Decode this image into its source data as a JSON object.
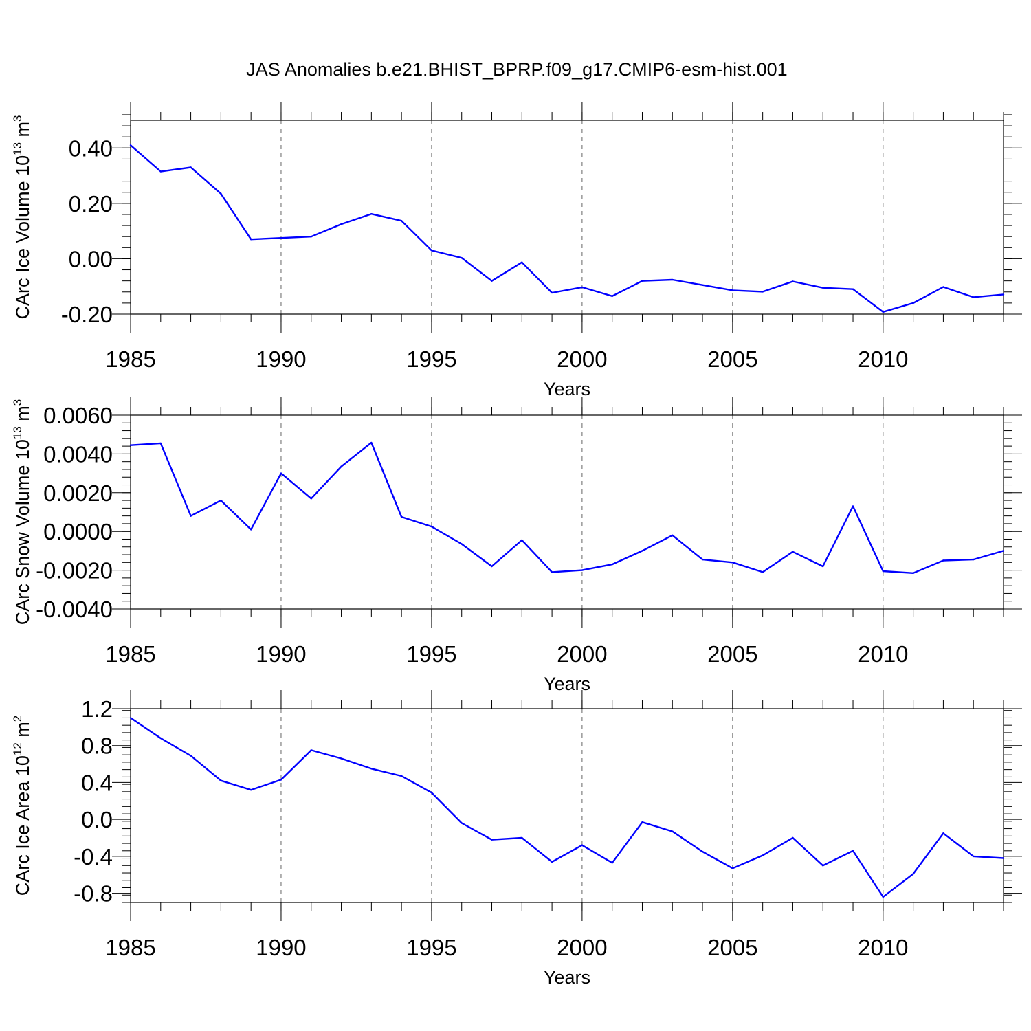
{
  "title": "JAS Anomalies b.e21.BHIST_BPRP.f09_g17.CMIP6-esm-hist.001",
  "colors": {
    "line": "#0000ff",
    "axes": "#000000",
    "grid": "#666666"
  },
  "chart_data": [
    {
      "type": "line",
      "ylabel_main": "CArc Ice Volume 10",
      "ylabel_exp": "13",
      "ylabel_unit": " m",
      "ylabel_unit_exp": "3",
      "xlabel": "Years",
      "xlim": [
        1985,
        2014
      ],
      "ylim": [
        -0.2,
        0.5
      ],
      "yticks": [
        -0.2,
        0.0,
        0.2,
        0.4
      ],
      "ytick_labels": [
        "-0.20",
        "0.00",
        "0.20",
        "0.40"
      ],
      "yminor_step": 0.04,
      "xticks": [
        1985,
        1990,
        1995,
        2000,
        2005,
        2010
      ],
      "xtick_labels": [
        "1985",
        "1990",
        "1995",
        "2000",
        "2005",
        "2010"
      ],
      "grid_x": [
        1990,
        1995,
        2000,
        2005,
        2010
      ],
      "x": [
        1985,
        1986,
        1987,
        1988,
        1989,
        1990,
        1991,
        1992,
        1993,
        1994,
        1995,
        1996,
        1997,
        1998,
        1999,
        2000,
        2001,
        2002,
        2003,
        2004,
        2005,
        2006,
        2007,
        2008,
        2009,
        2010,
        2011,
        2012,
        2013,
        2014
      ],
      "values": [
        0.41,
        0.315,
        0.33,
        0.235,
        0.07,
        0.075,
        0.08,
        0.125,
        0.162,
        0.137,
        0.03,
        0.003,
        -0.08,
        -0.013,
        -0.123,
        -0.103,
        -0.135,
        -0.08,
        -0.076,
        -0.095,
        -0.114,
        -0.119,
        -0.082,
        -0.105,
        -0.11,
        -0.192,
        -0.16,
        -0.102,
        -0.139,
        -0.129
      ]
    },
    {
      "type": "line",
      "ylabel_main": "CArc Snow Volume 10",
      "ylabel_exp": "13",
      "ylabel_unit": " m",
      "ylabel_unit_exp": "3",
      "xlabel": "Years",
      "xlim": [
        1985,
        2014
      ],
      "ylim": [
        -0.004,
        0.006
      ],
      "yticks": [
        -0.004,
        -0.002,
        0.0,
        0.002,
        0.004,
        0.006
      ],
      "ytick_labels": [
        "-0.0040",
        "-0.0020",
        "0.0000",
        "0.0020",
        "0.0040",
        "0.0060"
      ],
      "yminor_step": 0.0004,
      "xticks": [
        1985,
        1990,
        1995,
        2000,
        2005,
        2010
      ],
      "xtick_labels": [
        "1985",
        "1990",
        "1995",
        "2000",
        "2005",
        "2010"
      ],
      "grid_x": [
        1990,
        1995,
        2000,
        2005,
        2010
      ],
      "x": [
        1985,
        1986,
        1987,
        1988,
        1989,
        1990,
        1991,
        1992,
        1993,
        1994,
        1995,
        1996,
        1997,
        1998,
        1999,
        2000,
        2001,
        2002,
        2003,
        2004,
        2005,
        2006,
        2007,
        2008,
        2009,
        2010,
        2011,
        2012,
        2013,
        2014
      ],
      "values": [
        0.00445,
        0.00455,
        0.0008,
        0.0016,
        0.0001,
        0.003,
        0.0017,
        0.00335,
        0.00458,
        0.00075,
        0.00025,
        -0.00065,
        -0.0018,
        -0.00045,
        -0.0021,
        -0.002,
        -0.0017,
        -0.001,
        -0.0002,
        -0.00145,
        -0.0016,
        -0.0021,
        -0.00105,
        -0.0018,
        0.0013,
        -0.00205,
        -0.00215,
        -0.0015,
        -0.00145,
        -0.001
      ]
    },
    {
      "type": "line",
      "ylabel_main": "CArc Ice Area 10",
      "ylabel_exp": "12",
      "ylabel_unit": " m",
      "ylabel_unit_exp": "2",
      "xlabel": "Years",
      "xlim": [
        1985,
        2014
      ],
      "ylim": [
        -0.9,
        1.2
      ],
      "yticks": [
        -0.8,
        -0.4,
        0.0,
        0.4,
        0.8,
        1.2
      ],
      "ytick_labels": [
        "-0.8",
        "-0.4",
        "0.0",
        "0.4",
        "0.8",
        "1.2"
      ],
      "yminor_step": 0.08,
      "xticks": [
        1985,
        1990,
        1995,
        2000,
        2005,
        2010
      ],
      "xtick_labels": [
        "1985",
        "1990",
        "1995",
        "2000",
        "2005",
        "2010"
      ],
      "grid_x": [
        1990,
        1995,
        2000,
        2005,
        2010
      ],
      "x": [
        1985,
        1986,
        1987,
        1988,
        1989,
        1990,
        1991,
        1992,
        1993,
        1994,
        1995,
        1996,
        1997,
        1998,
        1999,
        2000,
        2001,
        2002,
        2003,
        2004,
        2005,
        2006,
        2007,
        2008,
        2009,
        2010,
        2011,
        2012,
        2013,
        2014
      ],
      "values": [
        1.1,
        0.88,
        0.69,
        0.42,
        0.32,
        0.43,
        0.75,
        0.66,
        0.55,
        0.47,
        0.29,
        -0.04,
        -0.22,
        -0.2,
        -0.46,
        -0.28,
        -0.47,
        -0.03,
        -0.13,
        -0.35,
        -0.53,
        -0.39,
        -0.2,
        -0.5,
        -0.34,
        -0.84,
        -0.59,
        -0.15,
        -0.4,
        -0.42
      ]
    }
  ]
}
